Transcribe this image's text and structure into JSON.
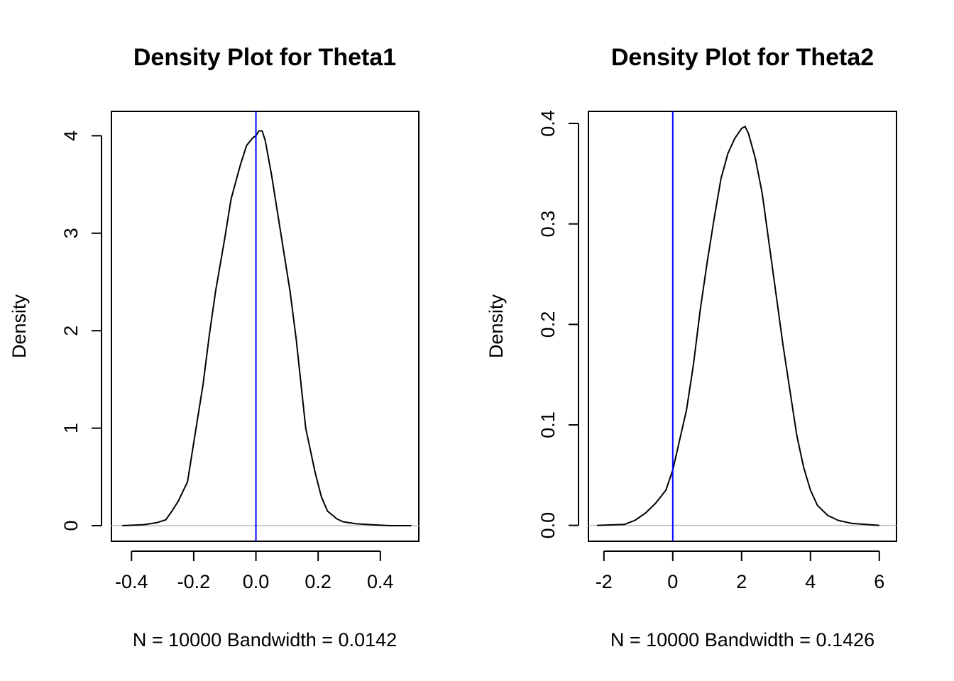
{
  "chart_data": [
    {
      "type": "line",
      "title": "Density Plot for Theta1",
      "xlabel": "N = 10000   Bandwidth = 0.0142",
      "ylabel": "Density",
      "xlim": [
        -0.4646,
        0.5237
      ],
      "ylim": [
        -0.16,
        4.25
      ],
      "x_ticks": [
        -0.4,
        -0.2,
        0.0,
        0.2,
        0.4
      ],
      "x_tick_labels": [
        "-0.4",
        "-0.2",
        "0.0",
        "0.2",
        "0.4"
      ],
      "y_ticks": [
        0,
        1,
        2,
        3,
        4
      ],
      "y_tick_labels": [
        "0",
        "1",
        "2",
        "3",
        "4"
      ],
      "baseline": 0,
      "reference_line": {
        "x": 0,
        "color": "#0000ff"
      },
      "series": [
        {
          "color": "#000000",
          "x": [
            -0.43,
            -0.36,
            -0.32,
            -0.29,
            -0.27,
            -0.25,
            -0.22,
            -0.2,
            -0.17,
            -0.15,
            -0.13,
            -0.1,
            -0.08,
            -0.05,
            -0.03,
            -0.01,
            0.0,
            0.01,
            0.02,
            0.03,
            0.05,
            0.08,
            0.11,
            0.13,
            0.16,
            0.19,
            0.21,
            0.23,
            0.26,
            0.28,
            0.32,
            0.37,
            0.43,
            0.5
          ],
          "y": [
            0.0,
            0.01,
            0.03,
            0.06,
            0.15,
            0.25,
            0.45,
            0.85,
            1.45,
            1.95,
            2.4,
            2.95,
            3.35,
            3.7,
            3.9,
            3.98,
            4.0,
            4.05,
            4.05,
            3.95,
            3.6,
            3.0,
            2.4,
            1.9,
            1.0,
            0.55,
            0.3,
            0.15,
            0.07,
            0.04,
            0.02,
            0.01,
            0.0,
            0.0
          ]
        }
      ]
    },
    {
      "type": "line",
      "title": "Density Plot for Theta2",
      "xlabel": "N = 10000   Bandwidth = 0.1426",
      "ylabel": "Density",
      "xlim": [
        -2.45,
        6.5
      ],
      "ylim": [
        -0.0158,
        0.412
      ],
      "x_ticks": [
        -2,
        0,
        2,
        4,
        6
      ],
      "x_tick_labels": [
        "-2",
        "0",
        "2",
        "4",
        "6"
      ],
      "y_ticks": [
        0.0,
        0.1,
        0.2,
        0.3,
        0.4
      ],
      "y_tick_labels": [
        "0.0",
        "0.1",
        "0.2",
        "0.3",
        "0.4"
      ],
      "baseline": 0,
      "reference_line": {
        "x": 0,
        "color": "#0000ff"
      },
      "series": [
        {
          "color": "#000000",
          "x": [
            -2.2,
            -1.4,
            -1.1,
            -0.8,
            -0.5,
            -0.2,
            0.0,
            0.2,
            0.4,
            0.6,
            0.8,
            1.0,
            1.2,
            1.4,
            1.6,
            1.8,
            2.0,
            2.1,
            2.2,
            2.4,
            2.6,
            2.8,
            3.0,
            3.2,
            3.4,
            3.6,
            3.8,
            4.0,
            4.2,
            4.5,
            4.8,
            5.2,
            5.6,
            6.0
          ],
          "y": [
            0.0,
            0.001,
            0.005,
            0.012,
            0.022,
            0.035,
            0.055,
            0.085,
            0.115,
            0.16,
            0.215,
            0.262,
            0.305,
            0.345,
            0.37,
            0.385,
            0.395,
            0.397,
            0.39,
            0.365,
            0.33,
            0.28,
            0.23,
            0.18,
            0.135,
            0.09,
            0.058,
            0.035,
            0.02,
            0.01,
            0.005,
            0.002,
            0.001,
            0.0
          ]
        }
      ]
    }
  ]
}
